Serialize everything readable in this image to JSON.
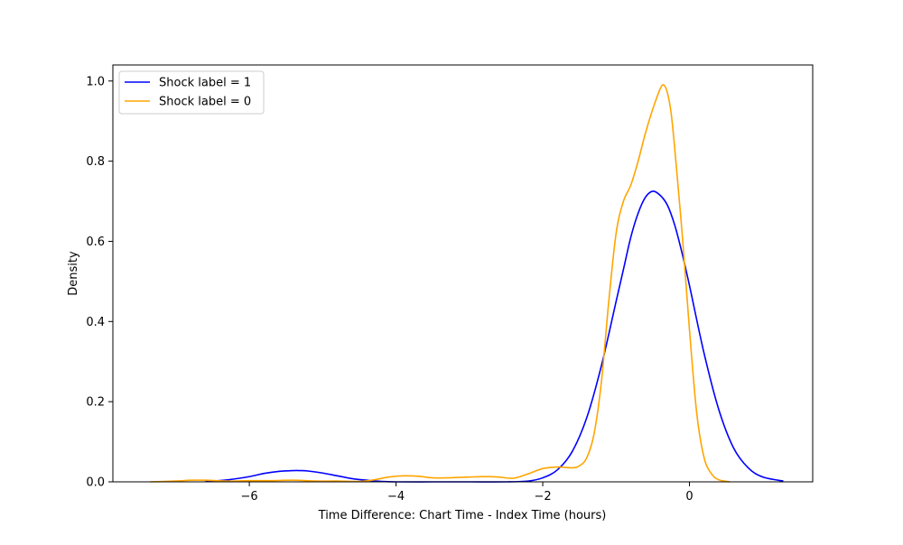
{
  "chart_data": {
    "type": "line",
    "title": "",
    "xlabel": "Time Difference: Chart Time - Index Time (hours)",
    "ylabel": "Density",
    "xlim": [
      -7.86,
      1.68
    ],
    "ylim": [
      0,
      1.04
    ],
    "xticks": [
      {
        "value": -6,
        "label": "−6"
      },
      {
        "value": -4,
        "label": "−4"
      },
      {
        "value": -2,
        "label": "−2"
      },
      {
        "value": 0,
        "label": "0"
      }
    ],
    "yticks": [
      {
        "value": 0.0,
        "label": "0.0"
      },
      {
        "value": 0.2,
        "label": "0.2"
      },
      {
        "value": 0.4,
        "label": "0.4"
      },
      {
        "value": 0.6,
        "label": "0.6"
      },
      {
        "value": 0.8,
        "label": "0.8"
      },
      {
        "value": 1.0,
        "label": "1.0"
      }
    ],
    "grid": false,
    "legend_position": "top-left",
    "series": [
      {
        "name": "Shock label = 1",
        "color": "#0000ff",
        "x": [
          -6.6,
          -6.3,
          -6.0,
          -5.8,
          -5.6,
          -5.4,
          -5.3,
          -5.2,
          -5.0,
          -4.8,
          -4.6,
          -4.4,
          -4.2,
          -4.0,
          -3.5,
          -3.0,
          -2.5,
          -2.2,
          -2.0,
          -1.8,
          -1.6,
          -1.4,
          -1.2,
          -1.0,
          -0.9,
          -0.8,
          -0.7,
          -0.6,
          -0.5,
          -0.4,
          -0.3,
          -0.2,
          -0.1,
          0.0,
          0.2,
          0.4,
          0.6,
          0.8,
          1.0,
          1.28
        ],
        "y": [
          0.001,
          0.005,
          0.013,
          0.021,
          0.026,
          0.028,
          0.028,
          0.027,
          0.022,
          0.015,
          0.008,
          0.004,
          0.001,
          0.0,
          0.0,
          0.0,
          0.0,
          0.002,
          0.01,
          0.03,
          0.075,
          0.16,
          0.29,
          0.45,
          0.53,
          0.61,
          0.67,
          0.71,
          0.725,
          0.715,
          0.69,
          0.64,
          0.57,
          0.49,
          0.32,
          0.18,
          0.085,
          0.035,
          0.012,
          0.002
        ]
      },
      {
        "name": "Shock label = 0",
        "color": "#ffa500",
        "x": [
          -7.35,
          -7.0,
          -6.8,
          -6.6,
          -6.3,
          -6.0,
          -5.7,
          -5.4,
          -5.1,
          -4.8,
          -4.5,
          -4.3,
          -4.1,
          -3.9,
          -3.7,
          -3.5,
          -3.3,
          -3.0,
          -2.8,
          -2.6,
          -2.4,
          -2.2,
          -2.0,
          -1.8,
          -1.6,
          -1.5,
          -1.4,
          -1.3,
          -1.2,
          -1.1,
          -1.0,
          -0.9,
          -0.8,
          -0.7,
          -0.6,
          -0.5,
          -0.4,
          -0.35,
          -0.3,
          -0.25,
          -0.2,
          -0.1,
          0.0,
          0.1,
          0.2,
          0.3,
          0.4,
          0.55
        ],
        "y": [
          0.0,
          0.002,
          0.004,
          0.004,
          0.002,
          0.003,
          0.003,
          0.004,
          0.002,
          0.002,
          0.001,
          0.005,
          0.012,
          0.015,
          0.014,
          0.01,
          0.01,
          0.012,
          0.013,
          0.012,
          0.009,
          0.02,
          0.033,
          0.037,
          0.035,
          0.04,
          0.06,
          0.12,
          0.25,
          0.45,
          0.62,
          0.7,
          0.74,
          0.8,
          0.87,
          0.93,
          0.98,
          0.99,
          0.97,
          0.92,
          0.83,
          0.62,
          0.38,
          0.17,
          0.06,
          0.02,
          0.005,
          0.0
        ]
      }
    ]
  }
}
